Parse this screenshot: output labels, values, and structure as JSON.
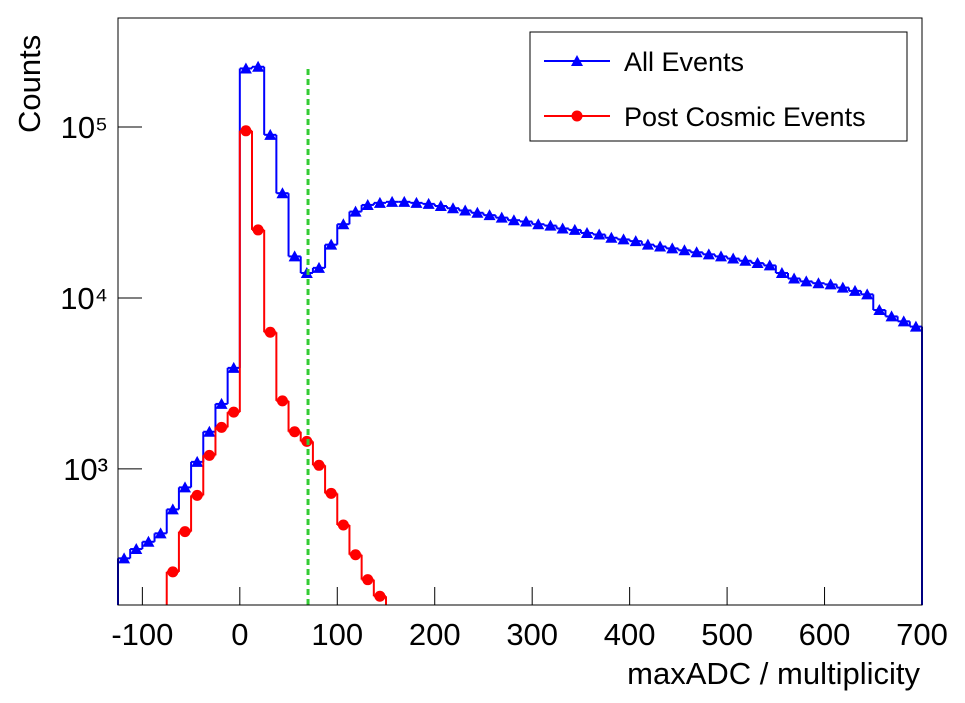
{
  "chart_data": {
    "type": "histogram",
    "x_label": "maxADC / multiplicity",
    "y_label": "Counts",
    "log_y": true,
    "bins": [
      -125,
      -112.5,
      -100,
      -87.5,
      -75,
      -62.5,
      -50,
      -37.5,
      -25,
      -12.5,
      0,
      12.5,
      25,
      37.5,
      50,
      62.5,
      75,
      87.5,
      100,
      112.5,
      125,
      137.5,
      150,
      162.5,
      175,
      187.5,
      200,
      212.5,
      225,
      237.5,
      250,
      262.5,
      275,
      287.5,
      300,
      312.5,
      325,
      337.5,
      350,
      362.5,
      375,
      387.5,
      400,
      412.5,
      425,
      437.5,
      450,
      462.5,
      475,
      487.5,
      500,
      512.5,
      525,
      537.5,
      550,
      562.5,
      575,
      587.5,
      600,
      612.5,
      625,
      637.5,
      650,
      662.5,
      675,
      687.5,
      700
    ],
    "series": [
      {
        "name": "All Events",
        "color": "#0000ff",
        "marker": "triangle",
        "values": [
          300,
          340,
          375,
          420,
          580,
          780,
          1100,
          1650,
          2400,
          3900,
          220000,
          225000,
          90000,
          41000,
          17500,
          14000,
          15000,
          20500,
          27000,
          32000,
          35000,
          36000,
          36500,
          36500,
          36000,
          35500,
          34500,
          33500,
          32500,
          31500,
          30500,
          29500,
          28500,
          28000,
          27000,
          26500,
          25500,
          25000,
          24000,
          23500,
          22500,
          22000,
          21500,
          20500,
          20000,
          19500,
          19000,
          18500,
          18000,
          17500,
          17000,
          16500,
          16000,
          15500,
          14000,
          13000,
          12500,
          12200,
          12000,
          11500,
          11000,
          10500,
          8500,
          7800,
          7300,
          6800
        ]
      },
      {
        "name": "Post Cosmic Events",
        "color": "#ff0000",
        "marker": "circle",
        "values": [
          null,
          null,
          null,
          null,
          250,
          430,
          700,
          1200,
          1750,
          2150,
          95000,
          25000,
          6300,
          2500,
          1650,
          1450,
          1050,
          720,
          470,
          315,
          225,
          180,
          null,
          null,
          null,
          null,
          null,
          null,
          null,
          null,
          null,
          null,
          null,
          null,
          null,
          null,
          null,
          null,
          null,
          null,
          null,
          null,
          null,
          null,
          null,
          null,
          null,
          null,
          null,
          null,
          null,
          null,
          null,
          null,
          null,
          null,
          null,
          null,
          null,
          null,
          null,
          null,
          null,
          null,
          null,
          null
        ]
      }
    ],
    "xlim": [
      -125,
      700
    ],
    "xticks": [
      -100,
      0,
      100,
      200,
      300,
      400,
      500,
      600,
      700
    ],
    "ylim": [
      160,
      434000
    ],
    "yticks": [
      {
        "value": 1000,
        "label": "10³"
      },
      {
        "value": 10000,
        "label": "10⁴"
      },
      {
        "value": 100000,
        "label": "10⁵"
      }
    ],
    "cut_line": {
      "x": 70,
      "ymax": 230000,
      "color": "#33cc33"
    },
    "legend": "upper right"
  }
}
